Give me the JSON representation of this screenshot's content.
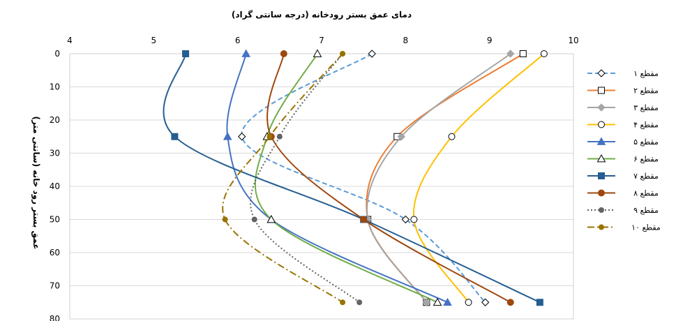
{
  "chart_data": {
    "type": "line",
    "title": "دمای عمق بستر رودخانه (درجه سانتی گراد)",
    "ylabel": "عمق بستر رود خانه (سانتی متر)",
    "xlim": [
      4,
      10
    ],
    "ylim": [
      0,
      80
    ],
    "y_inverted": true,
    "x_axis_position": "top",
    "x_ticks": [
      "4",
      "5",
      "6",
      "7",
      "8",
      "9",
      "10"
    ],
    "y_ticks": [
      "0",
      "10",
      "20",
      "30",
      "40",
      "50",
      "60",
      "70",
      "80"
    ],
    "legend_position": "right",
    "series": [
      {
        "name": "مقطع ۱",
        "color": "#5B9BD5",
        "dash": "dash",
        "marker": "diamond-open",
        "points": [
          [
            7.6,
            0
          ],
          [
            6.05,
            25
          ],
          [
            8.0,
            50
          ],
          [
            8.95,
            75
          ]
        ]
      },
      {
        "name": "مقطع ۲",
        "color": "#ED7D31",
        "dash": "solid",
        "marker": "square-open",
        "points": [
          [
            9.4,
            0
          ],
          [
            7.9,
            25
          ],
          [
            7.55,
            50
          ],
          [
            8.25,
            75
          ]
        ]
      },
      {
        "name": "مقطع ۳",
        "color": "#A5A5A5",
        "dash": "solid",
        "marker": "diamond",
        "points": [
          [
            9.25,
            0
          ],
          [
            7.95,
            25
          ],
          [
            7.55,
            50
          ],
          [
            8.25,
            75
          ]
        ]
      },
      {
        "name": "مقطع ۴",
        "color": "#FFC000",
        "dash": "solid",
        "marker": "circle-open",
        "points": [
          [
            9.65,
            0
          ],
          [
            8.55,
            25
          ],
          [
            8.1,
            50
          ],
          [
            8.75,
            75
          ]
        ]
      },
      {
        "name": "مقطع ۵",
        "color": "#4472C4",
        "dash": "solid",
        "marker": "triangle",
        "points": [
          [
            6.1,
            0
          ],
          [
            5.88,
            25
          ],
          [
            6.4,
            50
          ],
          [
            8.5,
            75
          ]
        ]
      },
      {
        "name": "مقطع ۶",
        "color": "#70AD47",
        "dash": "solid",
        "marker": "triangle-open",
        "points": [
          [
            6.95,
            0
          ],
          [
            6.35,
            25
          ],
          [
            6.4,
            50
          ],
          [
            8.38,
            75
          ]
        ]
      },
      {
        "name": "مقطع ۷",
        "color": "#255E91",
        "dash": "solid",
        "marker": "square",
        "points": [
          [
            5.38,
            0
          ],
          [
            5.25,
            25
          ],
          [
            7.5,
            50
          ],
          [
            9.6,
            75
          ]
        ]
      },
      {
        "name": "مقطع ۸",
        "color": "#9E480E",
        "dash": "solid",
        "marker": "circle",
        "points": [
          [
            6.55,
            0
          ],
          [
            6.4,
            25
          ],
          [
            7.5,
            50
          ],
          [
            9.25,
            75
          ]
        ]
      },
      {
        "name": "مقطع ۹",
        "color": "#636363",
        "dash": "dot",
        "marker": "circle-small",
        "points": [
          [
            7.25,
            0
          ],
          [
            6.5,
            25
          ],
          [
            6.2,
            50
          ],
          [
            7.45,
            75
          ]
        ]
      },
      {
        "name": "مقطع ۱۰",
        "color": "#997300",
        "dash": "dashdot",
        "marker": "circle-small",
        "points": [
          [
            7.25,
            0
          ],
          [
            6.38,
            25
          ],
          [
            5.85,
            50
          ],
          [
            7.25,
            75
          ]
        ]
      }
    ]
  }
}
